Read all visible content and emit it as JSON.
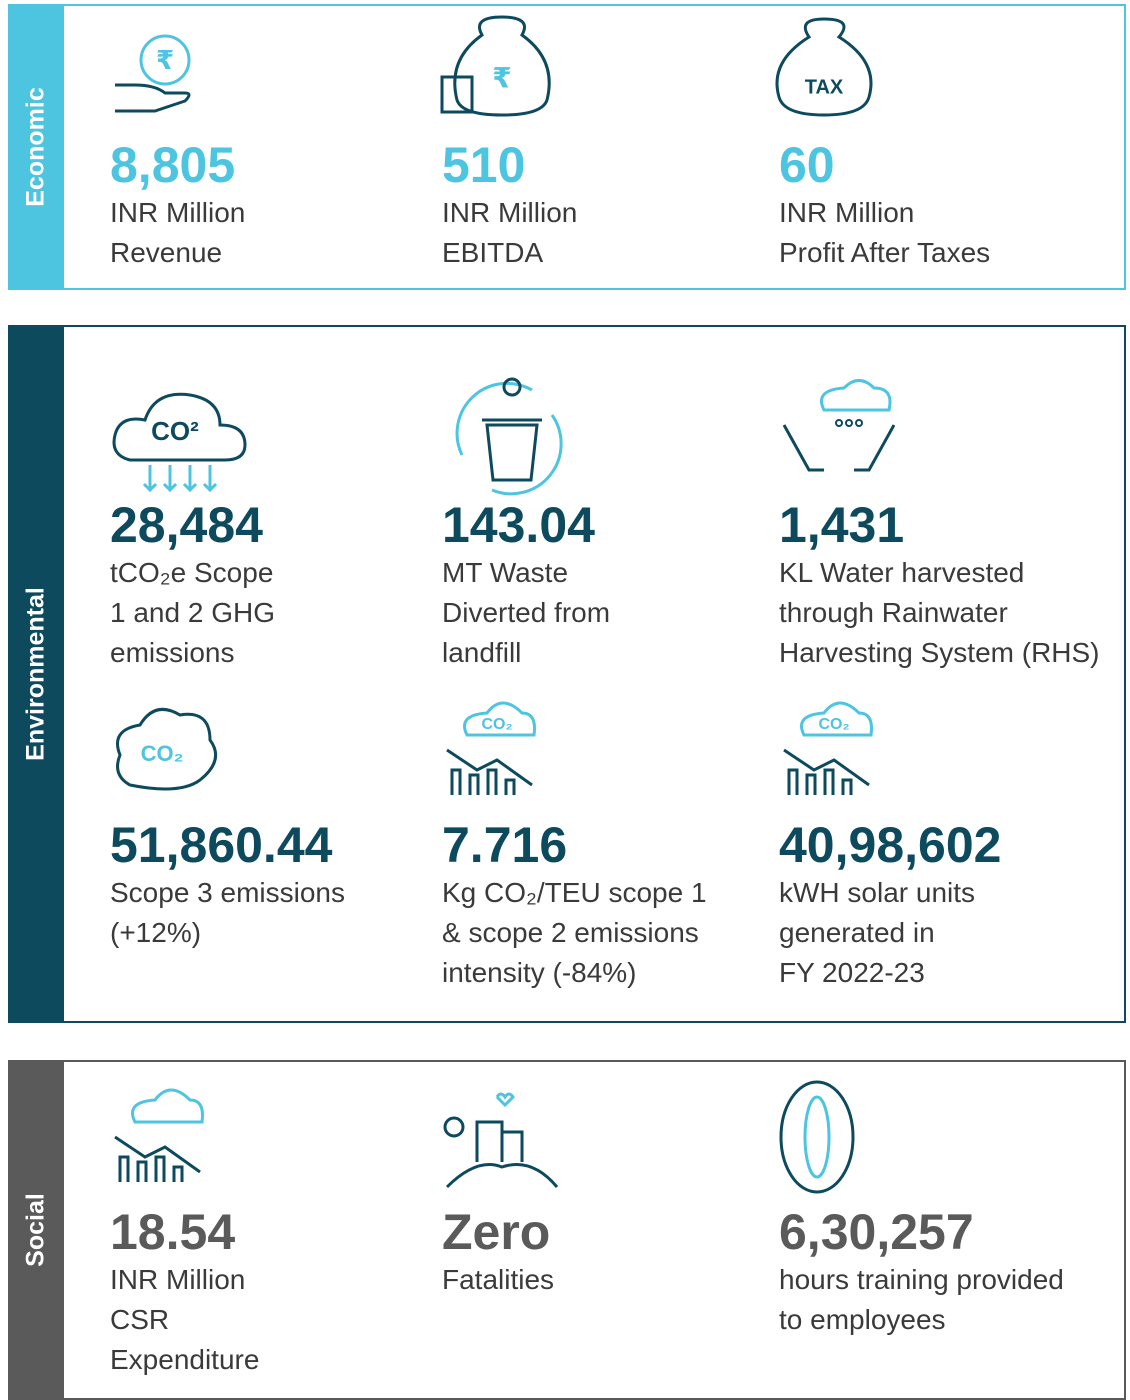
{
  "sections": [
    {
      "label": "Economic",
      "items": [
        {
          "icon_label": "₹",
          "value": "8,805",
          "lines": [
            "INR Million",
            "Revenue"
          ]
        },
        {
          "icon_label": "₹",
          "value": "510",
          "lines": [
            "INR Million",
            "EBITDA"
          ]
        },
        {
          "icon_label": "TAX",
          "value": "60",
          "lines": [
            "INR Million",
            "Profit After Taxes"
          ]
        }
      ]
    },
    {
      "label": "Environmental",
      "items": [
        {
          "icon_label": "CO²",
          "value": "28,484",
          "lines": [
            "tCO₂e Scope",
            "1 and 2 GHG",
            "emissions"
          ]
        },
        {
          "value": "143.04",
          "lines": [
            "MT Waste",
            "Diverted from",
            "landfill"
          ]
        },
        {
          "value": "1,431",
          "lines": [
            "KL Water harvested",
            "through Rainwater",
            "Harvesting System (RHS)"
          ]
        },
        {
          "icon_label": "CO₂",
          "value": "51,860.44",
          "lines": [
            "Scope 3 emissions",
            "(+12%)"
          ]
        },
        {
          "icon_label": "CO₂",
          "value": "7.716",
          "lines": [
            "Kg CO₂/TEU scope 1",
            "& scope 2 emissions",
            "intensity (-84%)"
          ]
        },
        {
          "icon_label": "CO₂",
          "value": "40,98,602",
          "lines": [
            "kWH solar units",
            "generated in",
            "FY 2022-23"
          ]
        }
      ]
    },
    {
      "label": "Social",
      "items": [
        {
          "value": "18.54",
          "lines": [
            "INR Million",
            "CSR",
            "Expenditure"
          ]
        },
        {
          "value": "Zero",
          "lines": [
            "Fatalities"
          ]
        },
        {
          "value": "6,30,257",
          "lines": [
            "hours training provided",
            "to employees"
          ]
        }
      ]
    }
  ]
}
